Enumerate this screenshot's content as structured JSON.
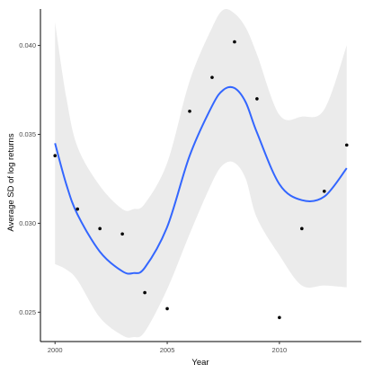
{
  "chart_data": {
    "type": "scatter",
    "xlabel": "Year",
    "ylabel": "Average SD of log returns",
    "xlim": [
      1999.35,
      2013.65
    ],
    "ylim": [
      0.02335,
      0.04205
    ],
    "x_ticks": [
      2000,
      2005,
      2010
    ],
    "y_ticks": [
      0.025,
      0.03,
      0.035,
      0.04
    ],
    "x_tick_labels": [
      "2000",
      "2005",
      "2010"
    ],
    "y_tick_labels": [
      "0.025",
      "0.030",
      "0.035",
      "0.040"
    ],
    "grid": false,
    "points": [
      {
        "x": 2000,
        "y": 0.0338
      },
      {
        "x": 2001,
        "y": 0.0308
      },
      {
        "x": 2002,
        "y": 0.0297
      },
      {
        "x": 2003,
        "y": 0.0294
      },
      {
        "x": 2004,
        "y": 0.0261
      },
      {
        "x": 2005,
        "y": 0.0252
      },
      {
        "x": 2006,
        "y": 0.0363
      },
      {
        "x": 2007,
        "y": 0.0382
      },
      {
        "x": 2008,
        "y": 0.0402
      },
      {
        "x": 2009,
        "y": 0.037
      },
      {
        "x": 2010,
        "y": 0.0247
      },
      {
        "x": 2011,
        "y": 0.0297
      },
      {
        "x": 2012,
        "y": 0.0318
      },
      {
        "x": 2013,
        "y": 0.0344
      }
    ],
    "smooth": {
      "x": [
        2000,
        2000.5,
        2001,
        2002,
        2003,
        2003.5,
        2004,
        2005,
        2006,
        2007,
        2007.5,
        2008,
        2008.5,
        2009,
        2010,
        2011,
        2012,
        2013
      ],
      "y": [
        0.0345,
        0.0322,
        0.0305,
        0.0284,
        0.0273,
        0.0272,
        0.0275,
        0.0298,
        0.0338,
        0.0366,
        0.0375,
        0.0376,
        0.0368,
        0.0351,
        0.0322,
        0.0313,
        0.0315,
        0.0331
      ],
      "lower": [
        0.0277,
        0.0274,
        0.0268,
        0.0247,
        0.0237,
        0.0236,
        0.0239,
        0.0263,
        0.0294,
        0.0323,
        0.0333,
        0.0334,
        0.0325,
        0.0303,
        0.0282,
        0.0265,
        0.0265,
        0.0264
      ],
      "upper": [
        0.0413,
        0.0371,
        0.0343,
        0.0321,
        0.0308,
        0.0308,
        0.0311,
        0.0334,
        0.038,
        0.041,
        0.042,
        0.0418,
        0.041,
        0.0395,
        0.0361,
        0.036,
        0.0364,
        0.04
      ]
    },
    "colors": {
      "points": "#000000",
      "smooth_line": "#3366FF",
      "ribbon": "#EBEBEB",
      "axis": "#000000",
      "background": "#FFFFFF"
    }
  }
}
